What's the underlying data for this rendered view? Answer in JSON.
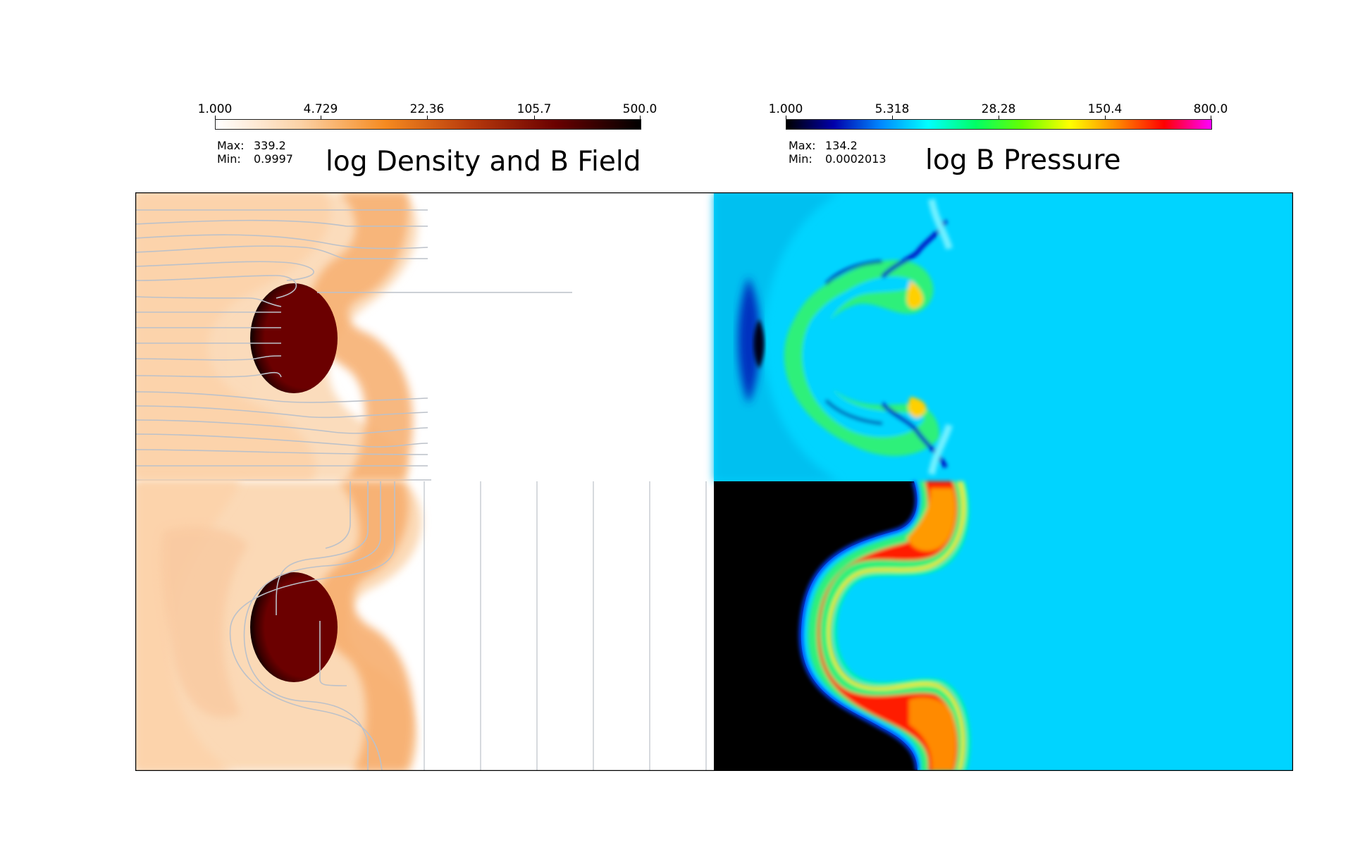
{
  "left_panel": {
    "title": "log Density and B Field",
    "colorbar": {
      "ticks": [
        "1.000",
        "4.729",
        "22.36",
        "105.7",
        "500.0"
      ],
      "colors": [
        "#ffffff",
        "#fcd2a6",
        "#f58a20",
        "#b83a0c",
        "#6a0000",
        "#000000"
      ]
    },
    "stats": {
      "max_label": "Max:",
      "max_value": "339.2",
      "min_label": "Min:",
      "min_value": "0.9997"
    }
  },
  "right_panel": {
    "title": "log B Pressure",
    "colorbar": {
      "ticks": [
        "1.000",
        "5.318",
        "28.28",
        "150.4",
        "800.0"
      ],
      "colors": [
        "#000000",
        "#0000aa",
        "#0088ff",
        "#00ffff",
        "#00ff66",
        "#66ff00",
        "#ffff00",
        "#ff8800",
        "#ff0000",
        "#ff00ff"
      ]
    },
    "stats": {
      "max_label": "Max:",
      "max_value": "134.2",
      "min_label": "Min:",
      "min_value": "0.0002013"
    }
  },
  "palette": {
    "density_background": "#fbdcbd",
    "density_bow": "#f7ab6a",
    "density_clump": "#6b0000",
    "field_line": "#b9bec7",
    "bpressure_background": "#00d4ff",
    "bpressure_black": "#000000",
    "bpressure_shell_green": "#2bf07a",
    "bpressure_shell_red": "#ff1a00",
    "bpressure_shell_orange": "#ff9c00",
    "bpressure_dark": "#001a9a"
  }
}
